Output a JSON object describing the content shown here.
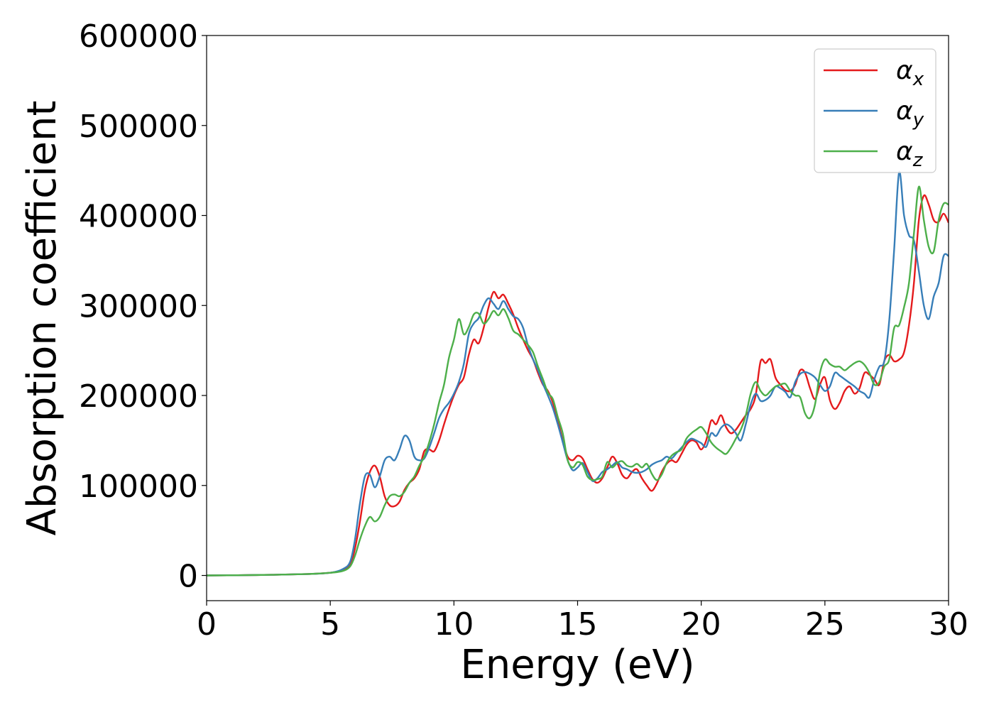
{
  "chart_data": {
    "type": "line",
    "title": "",
    "xlabel": "Energy (eV)",
    "ylabel": "Absorption coefficient",
    "xlim": [
      0,
      30
    ],
    "ylim": [
      -28000,
      600000
    ],
    "xticks": [
      "0",
      "5",
      "10",
      "15",
      "20",
      "25",
      "30"
    ],
    "yticks": [
      "0",
      "100000",
      "200000",
      "300000",
      "400000",
      "500000",
      "600000"
    ],
    "grid": false,
    "legend_position": "top-right",
    "series": [
      {
        "name": "α_x",
        "label_main": "α",
        "label_sub": "x",
        "color": "#e41a1c",
        "x": [
          0,
          2,
          4,
          5,
          5.5,
          5.8,
          6.0,
          6.2,
          6.4,
          6.6,
          6.8,
          7.0,
          7.2,
          7.4,
          7.6,
          7.8,
          8.0,
          8.2,
          8.4,
          8.6,
          8.8,
          9.0,
          9.2,
          9.4,
          9.6,
          9.8,
          10.0,
          10.2,
          10.4,
          10.6,
          10.8,
          11.0,
          11.2,
          11.4,
          11.6,
          11.8,
          12.0,
          12.2,
          12.4,
          12.6,
          12.8,
          13.0,
          13.2,
          13.4,
          13.6,
          13.8,
          14.0,
          14.2,
          14.4,
          14.6,
          14.8,
          15.0,
          15.2,
          15.4,
          15.6,
          15.8,
          16.0,
          16.2,
          16.4,
          16.6,
          16.8,
          17.0,
          17.2,
          17.4,
          17.6,
          17.8,
          18.0,
          18.2,
          18.4,
          18.6,
          18.8,
          19.0,
          19.2,
          19.4,
          19.6,
          19.8,
          20.0,
          20.2,
          20.4,
          20.6,
          20.8,
          21.0,
          21.2,
          21.4,
          21.6,
          21.8,
          22.0,
          22.2,
          22.4,
          22.6,
          22.8,
          23.0,
          23.2,
          23.4,
          23.6,
          23.8,
          24.0,
          24.2,
          24.4,
          24.6,
          24.8,
          25.0,
          25.2,
          25.4,
          25.6,
          25.8,
          26.0,
          26.2,
          26.4,
          26.6,
          26.8,
          27.0,
          27.2,
          27.4,
          27.6,
          27.8,
          28.0,
          28.2,
          28.4,
          28.6,
          28.8,
          29.0,
          29.2,
          29.4,
          29.6,
          29.8,
          30.0
        ],
        "y": [
          0,
          500,
          1500,
          3000,
          6000,
          12000,
          30000,
          60000,
          95000,
          115000,
          122000,
          110000,
          88000,
          78000,
          77000,
          82000,
          95000,
          103000,
          108000,
          118000,
          138000,
          140000,
          138000,
          150000,
          168000,
          185000,
          200000,
          212000,
          220000,
          245000,
          262000,
          258000,
          275000,
          298000,
          315000,
          308000,
          312000,
          302000,
          290000,
          275000,
          262000,
          250000,
          240000,
          225000,
          212000,
          205000,
          192000,
          172000,
          150000,
          132000,
          128000,
          133000,
          130000,
          118000,
          107000,
          103000,
          108000,
          120000,
          132000,
          125000,
          112000,
          108000,
          115000,
          118000,
          108000,
          100000,
          94000,
          102000,
          115000,
          124000,
          128000,
          126000,
          135000,
          145000,
          150000,
          148000,
          140000,
          150000,
          172000,
          168000,
          178000,
          165000,
          158000,
          162000,
          170000,
          178000,
          185000,
          200000,
          238000,
          236000,
          240000,
          220000,
          212000,
          206000,
          205000,
          212000,
          228000,
          225000,
          208000,
          196000,
          212000,
          220000,
          195000,
          185000,
          192000,
          205000,
          210000,
          202000,
          208000,
          225000,
          223000,
          218000,
          212000,
          238000,
          245000,
          238000,
          240000,
          248000,
          278000,
          325000,
          395000,
          422000,
          412000,
          395000,
          393000,
          402000,
          392000
        ],
        "color_role": "red"
      },
      {
        "name": "α_y",
        "label_main": "α",
        "label_sub": "y",
        "color": "#377eb8",
        "x": [
          0,
          2,
          4,
          5,
          5.5,
          5.8,
          6.0,
          6.2,
          6.4,
          6.6,
          6.8,
          7.0,
          7.2,
          7.4,
          7.6,
          7.8,
          8.0,
          8.2,
          8.4,
          8.6,
          8.8,
          9.0,
          9.2,
          9.4,
          9.6,
          9.8,
          10.0,
          10.2,
          10.4,
          10.6,
          10.8,
          11.0,
          11.2,
          11.4,
          11.6,
          11.8,
          12.0,
          12.2,
          12.4,
          12.6,
          12.8,
          13.0,
          13.2,
          13.4,
          13.6,
          13.8,
          14.0,
          14.2,
          14.4,
          14.6,
          14.8,
          15.0,
          15.2,
          15.4,
          15.6,
          15.8,
          16.0,
          16.2,
          16.4,
          16.6,
          16.8,
          17.0,
          17.2,
          17.4,
          17.6,
          17.8,
          18.0,
          18.2,
          18.4,
          18.6,
          18.8,
          19.0,
          19.2,
          19.4,
          19.6,
          19.8,
          20.0,
          20.2,
          20.4,
          20.6,
          20.8,
          21.0,
          21.2,
          21.4,
          21.6,
          21.8,
          22.0,
          22.2,
          22.4,
          22.6,
          22.8,
          23.0,
          23.2,
          23.4,
          23.6,
          23.8,
          24.0,
          24.2,
          24.4,
          24.6,
          24.8,
          25.0,
          25.2,
          25.4,
          25.6,
          25.8,
          26.0,
          26.2,
          26.4,
          26.6,
          26.8,
          27.0,
          27.2,
          27.4,
          27.6,
          27.8,
          28.0,
          28.2,
          28.4,
          28.6,
          28.8,
          29.0,
          29.2,
          29.4,
          29.6,
          29.8,
          30.0
        ],
        "y": [
          0,
          500,
          1500,
          3000,
          7000,
          15000,
          40000,
          80000,
          110000,
          112000,
          98000,
          110000,
          128000,
          132000,
          128000,
          140000,
          155000,
          150000,
          132000,
          128000,
          130000,
          142000,
          158000,
          175000,
          185000,
          192000,
          202000,
          215000,
          235000,
          268000,
          280000,
          286000,
          300000,
          308000,
          302000,
          296000,
          305000,
          296000,
          288000,
          285000,
          275000,
          255000,
          240000,
          228000,
          213000,
          200000,
          186000,
          168000,
          148000,
          128000,
          117000,
          120000,
          125000,
          115000,
          105000,
          108000,
          115000,
          118000,
          122000,
          126000,
          120000,
          118000,
          115000,
          114000,
          115000,
          118000,
          123000,
          126000,
          128000,
          132000,
          130000,
          136000,
          142000,
          148000,
          152000,
          150000,
          147000,
          143000,
          158000,
          155000,
          164000,
          168000,
          165000,
          158000,
          150000,
          168000,
          190000,
          202000,
          194000,
          195000,
          200000,
          210000,
          208000,
          204000,
          198000,
          215000,
          224000,
          226000,
          224000,
          220000,
          212000,
          205000,
          210000,
          225000,
          222000,
          218000,
          214000,
          210000,
          205000,
          202000,
          198000,
          218000,
          232000,
          238000,
          283000,
          362000,
          448000,
          400000,
          378000,
          372000,
          338000,
          300000,
          285000,
          310000,
          325000,
          355000,
          355000
        ],
        "color_role": "blue"
      },
      {
        "name": "α_z",
        "label_main": "α",
        "label_sub": "z",
        "color": "#4daf4a",
        "x": [
          0,
          2,
          4,
          5,
          5.5,
          5.8,
          6.0,
          6.2,
          6.4,
          6.6,
          6.8,
          7.0,
          7.2,
          7.4,
          7.6,
          7.8,
          8.0,
          8.2,
          8.4,
          8.6,
          8.8,
          9.0,
          9.2,
          9.4,
          9.6,
          9.8,
          10.0,
          10.2,
          10.4,
          10.6,
          10.8,
          11.0,
          11.2,
          11.4,
          11.6,
          11.8,
          12.0,
          12.2,
          12.4,
          12.6,
          12.8,
          13.0,
          13.2,
          13.4,
          13.6,
          13.8,
          14.0,
          14.2,
          14.4,
          14.6,
          14.8,
          15.0,
          15.2,
          15.4,
          15.6,
          15.8,
          16.0,
          16.2,
          16.4,
          16.6,
          16.8,
          17.0,
          17.2,
          17.4,
          17.6,
          17.8,
          18.0,
          18.2,
          18.4,
          18.6,
          18.8,
          19.0,
          19.2,
          19.4,
          19.6,
          19.8,
          20.0,
          20.2,
          20.4,
          20.6,
          20.8,
          21.0,
          21.2,
          21.4,
          21.6,
          21.8,
          22.0,
          22.2,
          22.4,
          22.6,
          22.8,
          23.0,
          23.2,
          23.4,
          23.6,
          23.8,
          24.0,
          24.2,
          24.4,
          24.6,
          24.8,
          25.0,
          25.2,
          25.4,
          25.6,
          25.8,
          26.0,
          26.2,
          26.4,
          26.6,
          26.8,
          27.0,
          27.2,
          27.4,
          27.6,
          27.8,
          28.0,
          28.2,
          28.4,
          28.6,
          28.8,
          29.0,
          29.2,
          29.4,
          29.6,
          29.8,
          30.0
        ],
        "y": [
          0,
          500,
          1500,
          3000,
          5000,
          10000,
          22000,
          40000,
          55000,
          65000,
          60000,
          65000,
          78000,
          88000,
          90000,
          88000,
          93000,
          103000,
          110000,
          122000,
          132000,
          148000,
          168000,
          192000,
          212000,
          242000,
          262000,
          285000,
          268000,
          276000,
          290000,
          291000,
          280000,
          285000,
          294000,
          289000,
          296000,
          286000,
          272000,
          268000,
          262000,
          256000,
          248000,
          232000,
          218000,
          203000,
          196000,
          176000,
          158000,
          128000,
          120000,
          126000,
          123000,
          110000,
          106000,
          107000,
          110000,
          126000,
          120000,
          125000,
          127000,
          122000,
          121000,
          124000,
          120000,
          124000,
          113000,
          106000,
          112000,
          125000,
          133000,
          137000,
          140000,
          152000,
          158000,
          162000,
          165000,
          158000,
          148000,
          142000,
          138000,
          135000,
          142000,
          152000,
          162000,
          178000,
          202000,
          215000,
          205000,
          200000,
          205000,
          210000,
          212000,
          213000,
          205000,
          200000,
          198000,
          180000,
          175000,
          190000,
          225000,
          240000,
          235000,
          232000,
          232000,
          228000,
          232000,
          236000,
          238000,
          234000,
          225000,
          212000,
          215000,
          232000,
          240000,
          275000,
          278000,
          298000,
          325000,
          380000,
          432000,
          395000,
          365000,
          360000,
          395000,
          413000,
          412000
        ],
        "color_role": "green"
      }
    ]
  }
}
